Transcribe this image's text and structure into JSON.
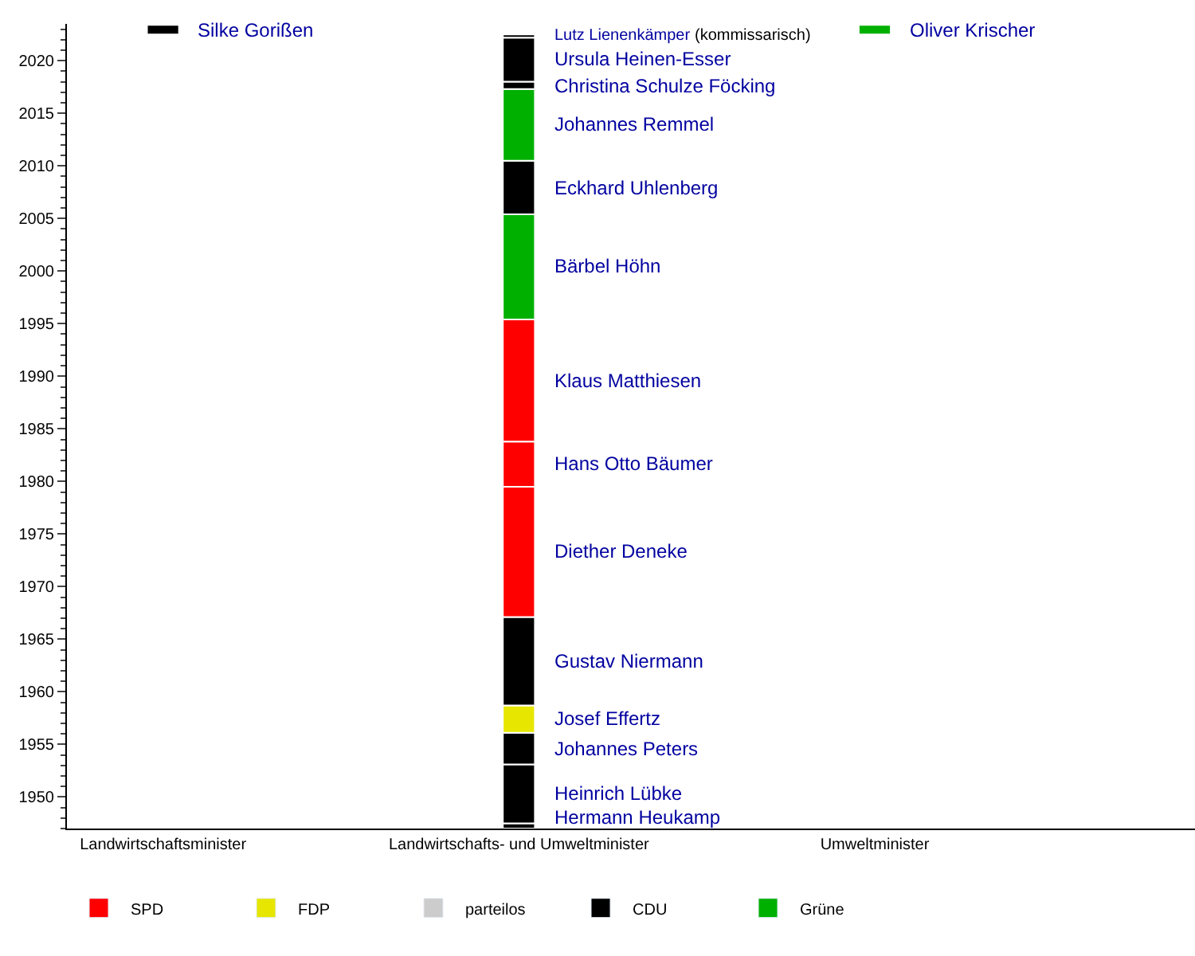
{
  "chart_data": {
    "type": "bar",
    "categories": [
      "Landwirtschaftsminister",
      "Landwirtschafts- und Umweltminister",
      "Umweltminister"
    ],
    "ylim": [
      1947,
      2023.5
    ],
    "yticks": [
      1950,
      1955,
      1960,
      1965,
      1970,
      1975,
      1980,
      1985,
      1990,
      1995,
      2000,
      2005,
      2010,
      2015,
      2020
    ],
    "legend": "bottom left",
    "series": [
      {
        "name": "Hermann Heukamp",
        "color": "#000000",
        "values": [
          null,
          0.5,
          null
        ],
        "base": [
          null,
          1947,
          null
        ]
      },
      {
        "name": "Heinrich Lübke",
        "color": "#000000",
        "values": [
          null,
          5.6,
          null
        ],
        "base": [
          null,
          1947.5,
          null
        ]
      },
      {
        "name": "Johannes Peters",
        "color": "#000000",
        "values": [
          null,
          3.0,
          null
        ],
        "base": [
          null,
          1953.1,
          null
        ]
      },
      {
        "name": "Josef Effertz",
        "color": "#e6e600",
        "values": [
          null,
          2.6,
          null
        ],
        "base": [
          null,
          1956.1,
          null
        ]
      },
      {
        "name": "Gustav Niermann",
        "color": "#000000",
        "values": [
          null,
          8.4,
          null
        ],
        "base": [
          null,
          1958.7,
          null
        ]
      },
      {
        "name": "Diether Deneke",
        "color": "#ff0000",
        "values": [
          null,
          12.4,
          null
        ],
        "base": [
          null,
          1967.1,
          null
        ]
      },
      {
        "name": "Hans Otto Bäumer",
        "color": "#ff0000",
        "values": [
          null,
          4.3,
          null
        ],
        "base": [
          null,
          1979.5,
          null
        ]
      },
      {
        "name": "Klaus Matthiesen",
        "color": "#ff0000",
        "values": [
          null,
          11.6,
          null
        ],
        "base": [
          null,
          1983.8,
          null
        ]
      },
      {
        "name": "Bärbel Höhn",
        "color": "#00b000",
        "values": [
          null,
          10.0,
          null
        ],
        "base": [
          null,
          1995.4,
          null
        ]
      },
      {
        "name": "Eckhard Uhlenberg",
        "color": "#000000",
        "values": [
          null,
          5.1,
          null
        ],
        "base": [
          null,
          2005.4,
          null
        ]
      },
      {
        "name": "Johannes Remmel",
        "color": "#00b000",
        "values": [
          null,
          6.8,
          null
        ],
        "base": [
          null,
          2010.5,
          null
        ]
      },
      {
        "name": "Christina Schulze Föcking",
        "color": "#000000",
        "values": [
          null,
          0.7,
          null
        ],
        "base": [
          null,
          2017.3,
          null
        ]
      },
      {
        "name": "Ursula Heinen-Esser",
        "color": "#000000",
        "values": [
          null,
          4.2,
          null
        ],
        "base": [
          null,
          2018.0,
          null
        ]
      },
      {
        "name": "Lutz Lienenkämper",
        "color": "#000000",
        "values": [
          null,
          0.3,
          null
        ],
        "base": [
          null,
          2022.2,
          null
        ]
      },
      {
        "name": "Silke Gorißen",
        "color": "#000000",
        "values": [
          0.9,
          null,
          null
        ],
        "base": [
          2022.5,
          null,
          null
        ]
      },
      {
        "name": "Oliver Krischer",
        "color": "#00b000",
        "values": [
          null,
          null,
          0.9
        ],
        "base": [
          null,
          null,
          2022.5
        ]
      },
      {
        "name": "SPD",
        "color": "#ff0000",
        "values": [
          null,
          null,
          null
        ]
      },
      {
        "name": "FDP",
        "color": "#e6e600",
        "values": [
          null,
          null,
          null
        ]
      },
      {
        "name": "parteilos",
        "color": "#cccccc",
        "values": [
          null,
          null,
          null
        ]
      },
      {
        "name": "CDU",
        "color": "#000000",
        "values": [
          null,
          null,
          null
        ]
      },
      {
        "name": "Grüne",
        "color": "#00b000",
        "values": [
          null,
          null,
          null
        ]
      }
    ],
    "annotations": [
      "(kommissarisch)"
    ]
  }
}
